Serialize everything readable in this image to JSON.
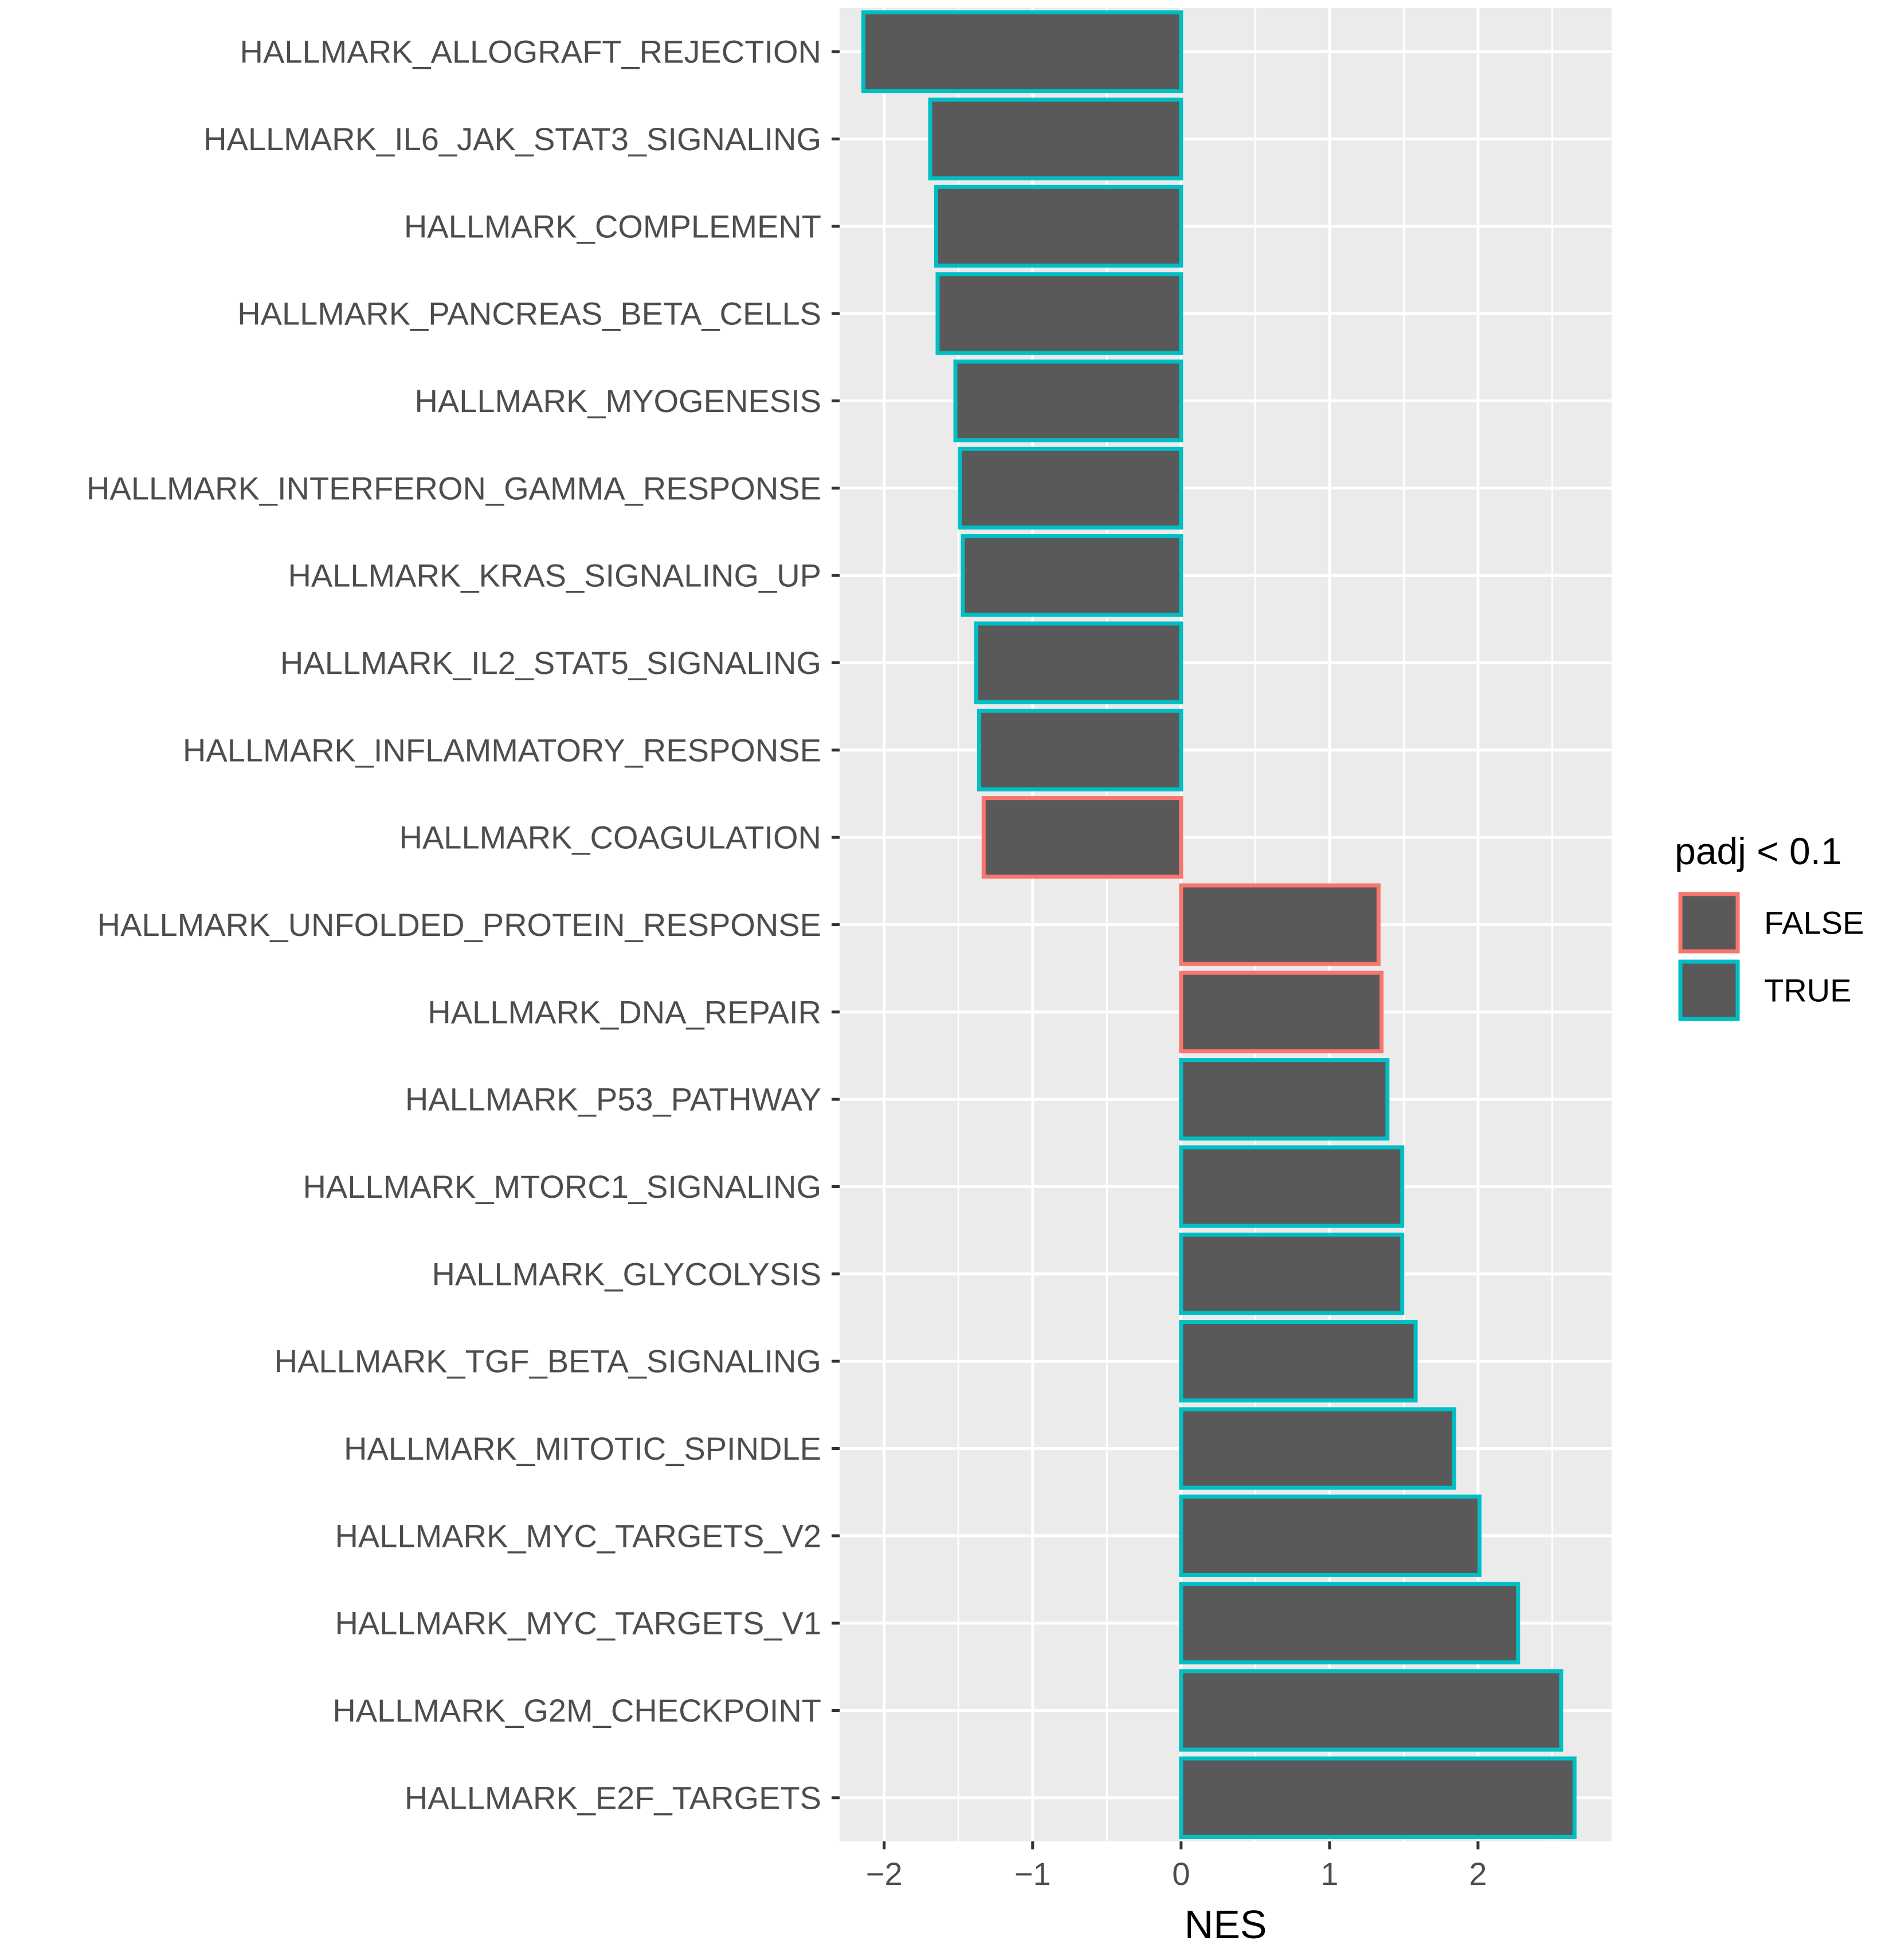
{
  "chart_data": {
    "type": "bar",
    "orientation": "horizontal",
    "title": "",
    "xlabel": "NES",
    "ylabel": "",
    "xlim": [
      -2.3,
      2.9
    ],
    "x_ticks": [
      -2,
      -1,
      0,
      1,
      2
    ],
    "x_tick_labels": [
      "−2",
      "−1",
      "0",
      "1",
      "2"
    ],
    "grid": true,
    "legend": {
      "title": "padj < 0.1",
      "position": "right",
      "entries": [
        {
          "label": "FALSE",
          "color": "#F8766D"
        },
        {
          "label": "TRUE",
          "color": "#00BFC4"
        }
      ]
    },
    "fill_color": "#595959",
    "panel_background": "#EBEBEB",
    "categories": [
      "HALLMARK_ALLOGRAFT_REJECTION",
      "HALLMARK_IL6_JAK_STAT3_SIGNALING",
      "HALLMARK_COMPLEMENT",
      "HALLMARK_PANCREAS_BETA_CELLS",
      "HALLMARK_MYOGENESIS",
      "HALLMARK_INTERFERON_GAMMA_RESPONSE",
      "HALLMARK_KRAS_SIGNALING_UP",
      "HALLMARK_IL2_STAT5_SIGNALING",
      "HALLMARK_INFLAMMATORY_RESPONSE",
      "HALLMARK_COAGULATION",
      "HALLMARK_UNFOLDED_PROTEIN_RESPONSE",
      "HALLMARK_DNA_REPAIR",
      "HALLMARK_P53_PATHWAY",
      "HALLMARK_MTORC1_SIGNALING",
      "HALLMARK_GLYCOLYSIS",
      "HALLMARK_TGF_BETA_SIGNALING",
      "HALLMARK_MITOTIC_SPINDLE",
      "HALLMARK_MYC_TARGETS_V2",
      "HALLMARK_MYC_TARGETS_V1",
      "HALLMARK_G2M_CHECKPOINT",
      "HALLMARK_E2F_TARGETS"
    ],
    "values": [
      -2.14,
      -1.69,
      -1.65,
      -1.64,
      -1.52,
      -1.49,
      -1.47,
      -1.38,
      -1.36,
      -1.33,
      1.33,
      1.35,
      1.39,
      1.49,
      1.49,
      1.58,
      1.84,
      2.01,
      2.27,
      2.56,
      2.65
    ],
    "padj_lt_0_1": [
      "TRUE",
      "TRUE",
      "TRUE",
      "TRUE",
      "TRUE",
      "TRUE",
      "TRUE",
      "TRUE",
      "TRUE",
      "FALSE",
      "FALSE",
      "FALSE",
      "TRUE",
      "TRUE",
      "TRUE",
      "TRUE",
      "TRUE",
      "TRUE",
      "TRUE",
      "TRUE",
      "TRUE"
    ]
  }
}
